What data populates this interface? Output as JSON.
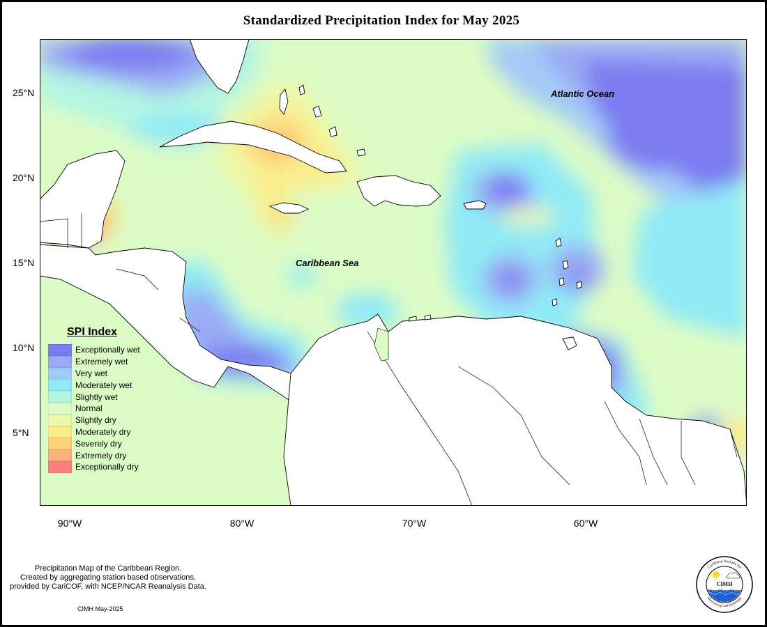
{
  "title": "Standardized Precipitation Index for May 2025",
  "labels": {
    "atlantic": "Atlantic Ocean",
    "caribbean": "Caribbean Sea"
  },
  "axes": {
    "lat": [
      "25°N",
      "20°N",
      "15°N",
      "10°N",
      "5°N"
    ],
    "lon": [
      "90°W",
      "80°W",
      "70°W",
      "60°W"
    ]
  },
  "legend": {
    "title": "SPI Index",
    "items": [
      {
        "label": "Exceptionally wet",
        "color": "#7b7bf0"
      },
      {
        "label": "Extremely wet",
        "color": "#9aaaf5"
      },
      {
        "label": "Very wet",
        "color": "#a3cbf7"
      },
      {
        "label": "Moderately wet",
        "color": "#90eaf6"
      },
      {
        "label": "Slightly wet",
        "color": "#b3f5e2"
      },
      {
        "label": "Normal",
        "color": "#dcfcc6"
      },
      {
        "label": "Slightly dry",
        "color": "#eff8a6"
      },
      {
        "label": "Moderately dry",
        "color": "#fbec8a"
      },
      {
        "label": "Severely dry",
        "color": "#fcd47a"
      },
      {
        "label": "Extremely dry",
        "color": "#fbb27b"
      },
      {
        "label": "Exceptionally dry",
        "color": "#fa8080"
      }
    ]
  },
  "credits": {
    "line1": "Precipitation Map of the Caribbean Region.",
    "line2": "Created by aggregating station based observations,",
    "line3": "provided by CariCOF, with NCEP/NCAR Reanalysis Data.",
    "date": "CIMH May-2025"
  },
  "logo": {
    "text": "CIMH",
    "arc_top": "Caribbean Institute for",
    "arc_bottom": "Meteorology and Hydrology"
  }
}
